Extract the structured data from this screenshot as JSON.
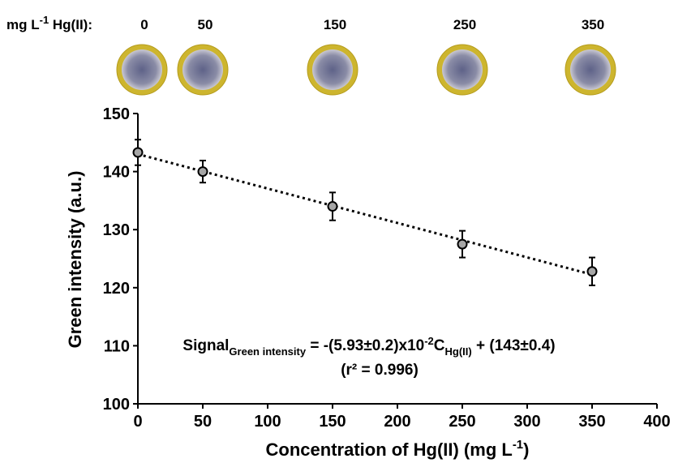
{
  "chart_data": {
    "type": "scatter",
    "header": {
      "label": [
        "mg L",
        "-1",
        " Hg(II):"
      ],
      "samples": [
        "0",
        "50",
        "150",
        "250",
        "350"
      ]
    },
    "x": [
      0,
      50,
      150,
      250,
      350
    ],
    "series": [
      {
        "values": [
          143.3,
          140,
          134,
          127.5,
          122.8
        ],
        "error": [
          2.2,
          1.9,
          2.4,
          2.3,
          2.4
        ],
        "color": "#a6a6a6"
      }
    ],
    "xlim": [
      0,
      400
    ],
    "ylim": [
      100,
      150
    ],
    "xticks": [
      0,
      50,
      100,
      150,
      200,
      250,
      300,
      350,
      400
    ],
    "yticks": [
      100,
      110,
      120,
      130,
      140,
      150
    ],
    "xlabel": [
      "Concentration of Hg(II) (mg L",
      "-1",
      ")"
    ],
    "ylabel": "Green intensity (a.u.)",
    "equation": [
      "Signal",
      "Green intensity",
      " = -(5.93±0.2)x10",
      "-2",
      "C",
      "Hg(II)",
      " + (143±0.4)"
    ],
    "r2": "(r² = 0.996)",
    "trendline": true
  }
}
